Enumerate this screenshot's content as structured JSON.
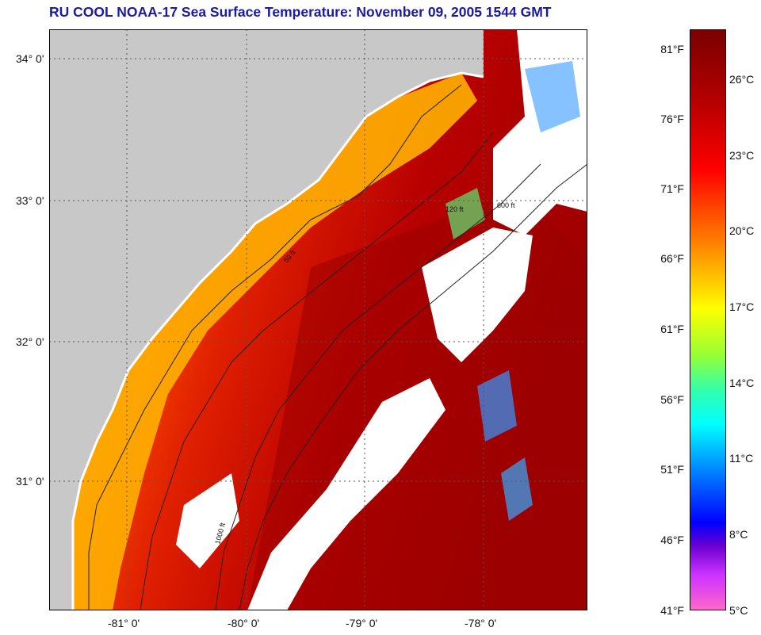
{
  "title": "RU COOL  NOAA-17  Sea Surface Temperature:  November 09, 2005 1544 GMT",
  "map": {
    "lat_labels": [
      "34° 0'",
      "33° 0'",
      "32° 0'",
      "31° 0'"
    ],
    "lon_labels": [
      "-81° 0'",
      "-80° 0'",
      "-79° 0'",
      "-78° 0'"
    ],
    "contour_labels": [
      "50 ft",
      "120 ft",
      "600 ft",
      "1000 ft"
    ],
    "colors": {
      "land": "#c8c8c8",
      "cloud": "#ffffff",
      "warm_ocean": "#c00000",
      "cool_shelf": "#ffb000",
      "deep_water": "#9a0000"
    }
  },
  "colorbar": {
    "fahrenheit_labels": [
      "81°F",
      "76°F",
      "71°F",
      "66°F",
      "61°F",
      "56°F",
      "51°F",
      "46°F",
      "41°F"
    ],
    "celsius_labels": [
      "26°C",
      "23°C",
      "20°C",
      "17°C",
      "14°C",
      "11°C",
      "8°C",
      "5°C"
    ]
  }
}
